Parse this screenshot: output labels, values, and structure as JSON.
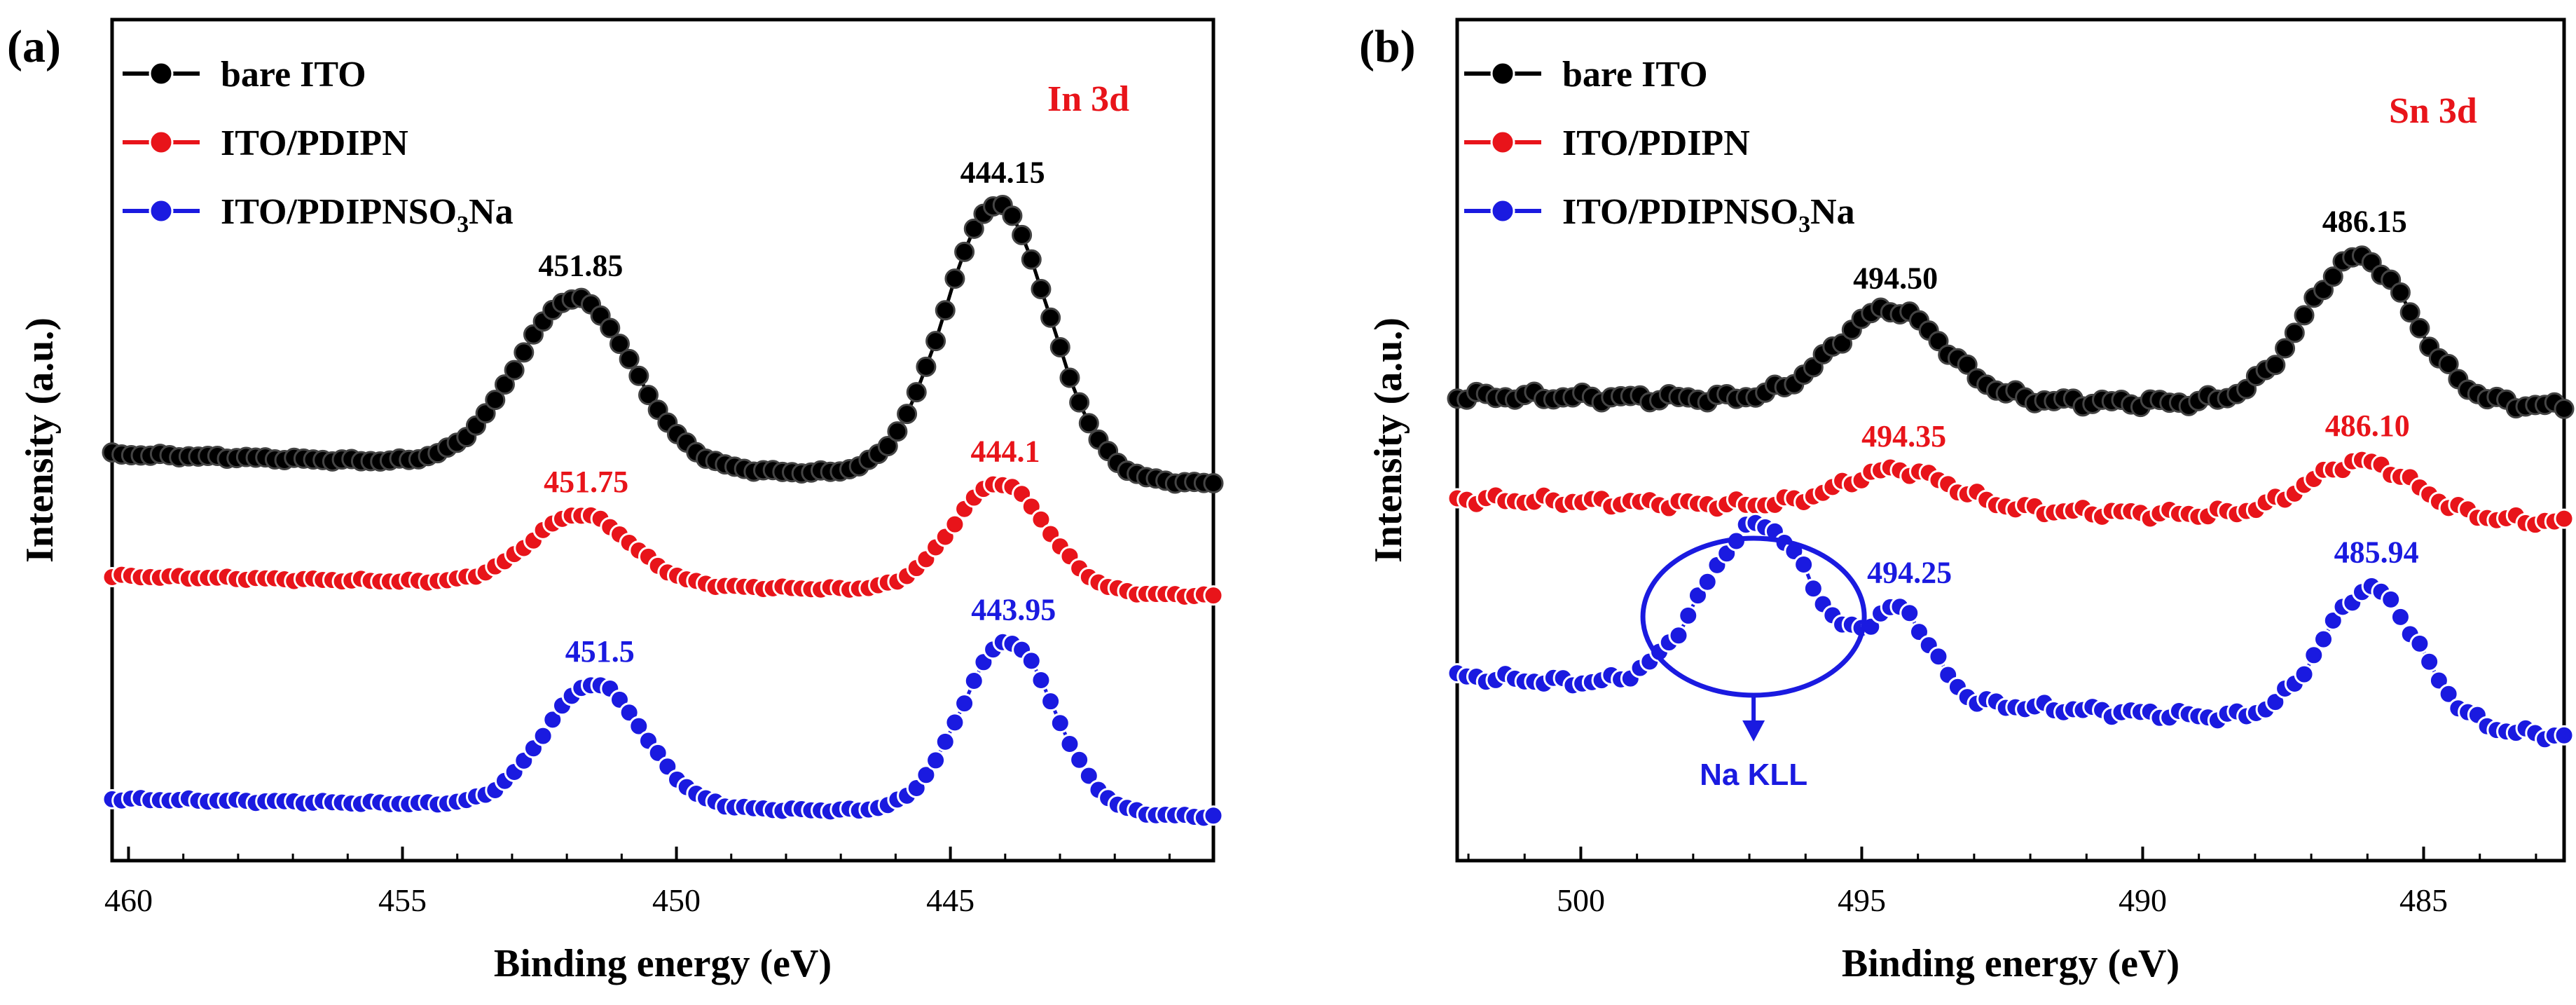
{
  "chart_data": [
    {
      "panel": "(a)",
      "type": "line",
      "corner_label": "In 3d",
      "corner_color": "#e8141a",
      "xlabel": "Binding energy (eV)",
      "ylabel": "Intensity (a.u.)",
      "xlim": [
        460.3,
        440.2
      ],
      "xticks": [
        460,
        455,
        450,
        445
      ],
      "legend": [
        "bare ITO",
        "ITO/PDIPN",
        "ITO/PDIPNSO₃Na"
      ],
      "legend_main": "ITO/PDIPNSO",
      "legend_sub": "3",
      "legend_tail": "Na",
      "series": [
        {
          "name": "bare ITO",
          "color": "#000000",
          "peaks": [
            451.85,
            444.15
          ]
        },
        {
          "name": "ITO/PDIPN",
          "color": "#e8141a",
          "peaks": [
            451.75,
            444.1
          ]
        },
        {
          "name": "ITO/PDIPNSO3Na",
          "color": "#1a1ae0",
          "peaks": [
            451.5,
            443.95
          ]
        }
      ],
      "peak_labels": [
        {
          "text": "451.85",
          "x": 451.85,
          "series": 0
        },
        {
          "text": "444.15",
          "x": 444.15,
          "series": 0
        },
        {
          "text": "451.75",
          "x": 451.75,
          "series": 1
        },
        {
          "text": "444.1",
          "x": 444.1,
          "series": 1
        },
        {
          "text": "451.5",
          "x": 451.5,
          "series": 2
        },
        {
          "text": "443.95",
          "x": 443.95,
          "series": 2
        }
      ]
    },
    {
      "panel": "(b)",
      "type": "line",
      "corner_label": "Sn 3d",
      "corner_color": "#e8141a",
      "xlabel": "Binding energy (eV)",
      "ylabel": "Intensity (a.u.)",
      "xlim": [
        502.2,
        482.5
      ],
      "xticks": [
        500,
        495,
        490,
        485
      ],
      "legend": [
        "bare ITO",
        "ITO/PDIPN",
        "ITO/PDIPNSO₃Na"
      ],
      "legend_main": "ITO/PDIPNSO",
      "legend_sub": "3",
      "legend_tail": "Na",
      "series": [
        {
          "name": "bare ITO",
          "color": "#000000",
          "peaks": [
            494.5,
            486.15
          ]
        },
        {
          "name": "ITO/PDIPN",
          "color": "#e8141a",
          "peaks": [
            494.35,
            486.1
          ]
        },
        {
          "name": "ITO/PDIPNSO3Na",
          "color": "#1a1ae0",
          "peaks": [
            494.25,
            485.94
          ]
        }
      ],
      "peak_labels": [
        {
          "text": "494.50",
          "x": 494.5,
          "series": 0
        },
        {
          "text": "486.15",
          "x": 486.15,
          "series": 0
        },
        {
          "text": "494.35",
          "x": 494.35,
          "series": 1
        },
        {
          "text": "486.10",
          "x": 486.1,
          "series": 1
        },
        {
          "text": "494.25",
          "x": 494.25,
          "series": 2
        },
        {
          "text": "485.94",
          "x": 485.94,
          "series": 2
        }
      ],
      "annotation": {
        "text": "Na KLL",
        "x": 496.8
      }
    }
  ]
}
